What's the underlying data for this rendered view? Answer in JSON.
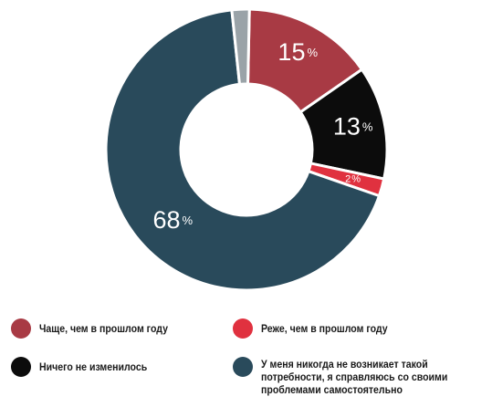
{
  "chart_data": {
    "type": "pie",
    "donut": true,
    "categories": [
      "Чаще, чем в прошлом году",
      "Ничего не изменилось",
      "Реже, чем в прошлом году",
      "У меня никогда не возникает такой потребности, я справляюсь со своими проблемами самостоятельно",
      ""
    ],
    "values": [
      15,
      13,
      2,
      68,
      2
    ],
    "value_labels": [
      "15",
      "13",
      "2",
      "68",
      ""
    ],
    "percent_sign": "%",
    "colors": [
      "#a83a44",
      "#0c0c0c",
      "#e0313f",
      "#294a5b",
      "#9aa3a8"
    ],
    "legend_placement": "bottom",
    "title": ""
  },
  "legend": {
    "items": [
      {
        "lines": [
          "Чаще, чем в прошлом году"
        ],
        "color": "#a83a44"
      },
      {
        "lines": [
          "Реже, чем в прошлом году"
        ],
        "color": "#e0313f"
      },
      {
        "lines": [
          "Ничего не изменилось"
        ],
        "color": "#0c0c0c"
      },
      {
        "lines": [
          "У меня никогда не возникает такой",
          "потребности, я справляюсь со своими",
          "проблемами самостоятельно"
        ],
        "color": "#294a5b"
      }
    ]
  }
}
